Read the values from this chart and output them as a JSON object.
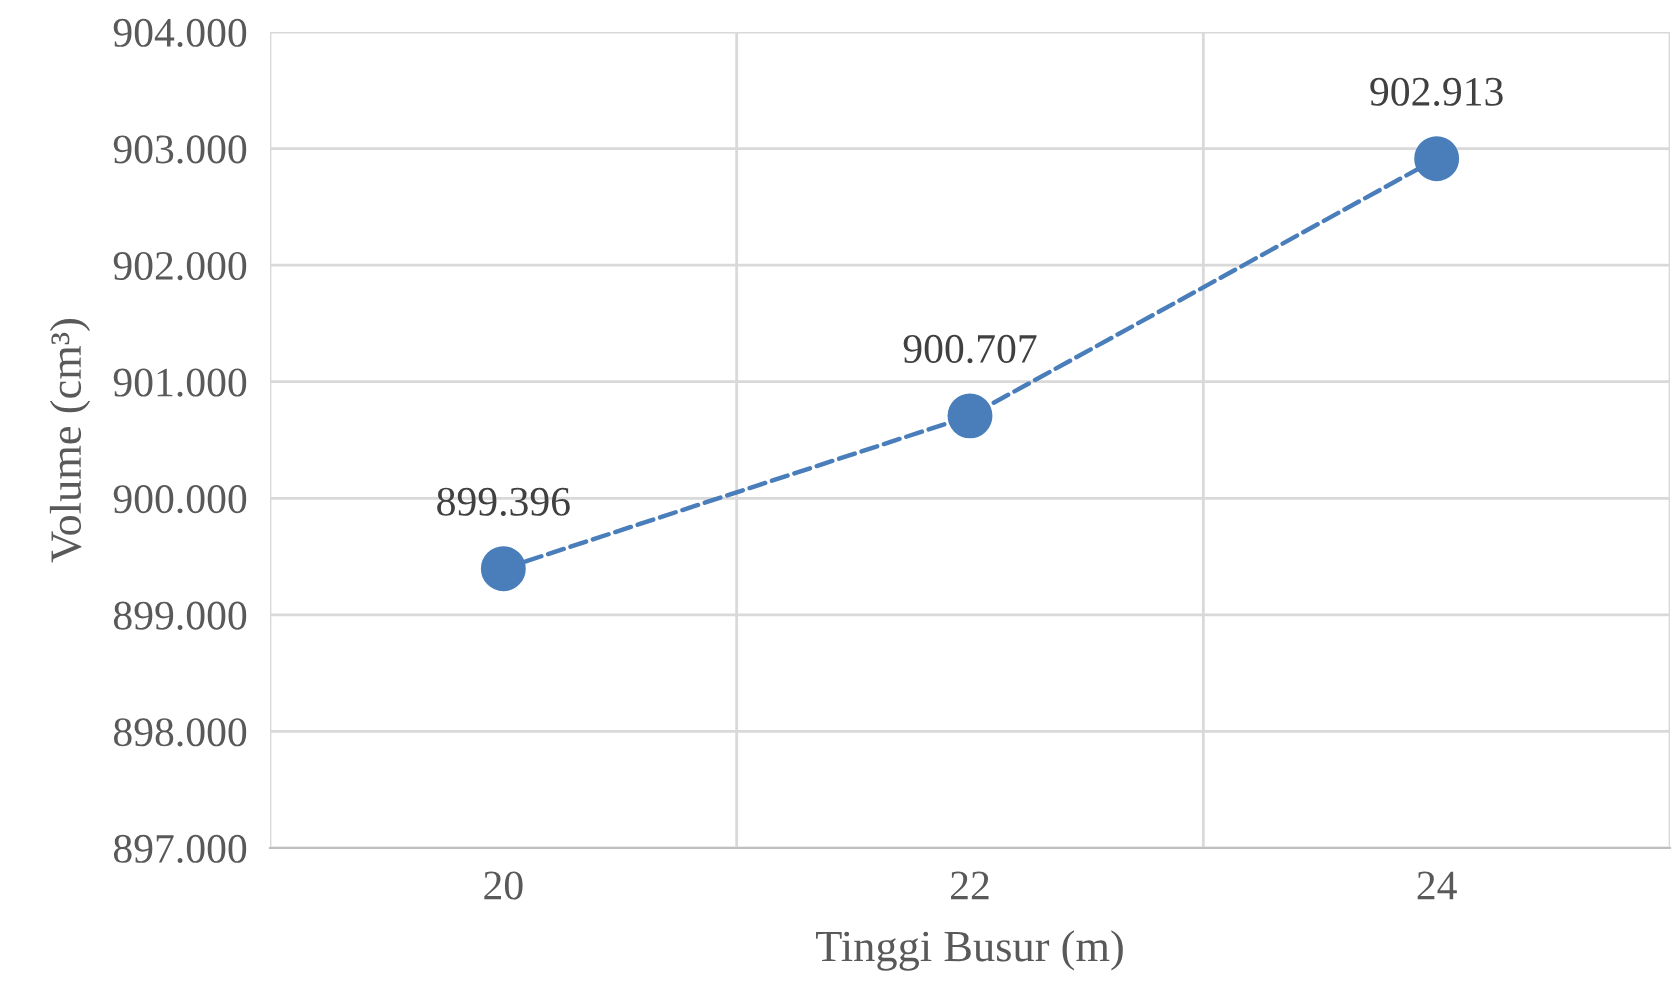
{
  "chart_data": {
    "type": "line",
    "xlabel": "Tinggi Busur (m)",
    "ylabel": "Volume (cm³)",
    "categories": [
      "20",
      "22",
      "24"
    ],
    "series": [
      {
        "color": "#4a7ebb",
        "values": [
          899.396,
          900.707,
          902.913
        ]
      }
    ],
    "ylim": [
      897,
      904
    ],
    "yticks": [
      {
        "value": 897,
        "label": "897.000"
      },
      {
        "value": 898,
        "label": "898.000"
      },
      {
        "value": 899,
        "label": "899.000"
      },
      {
        "value": 900,
        "label": "900.000"
      },
      {
        "value": 901,
        "label": "901.000"
      },
      {
        "value": 902,
        "label": "902.000"
      },
      {
        "value": 903,
        "label": "903.000"
      },
      {
        "value": 904,
        "label": "904.000"
      }
    ],
    "grid": true,
    "marker": "circle",
    "line_style": "dashed",
    "data_labels": true,
    "legend": false
  }
}
